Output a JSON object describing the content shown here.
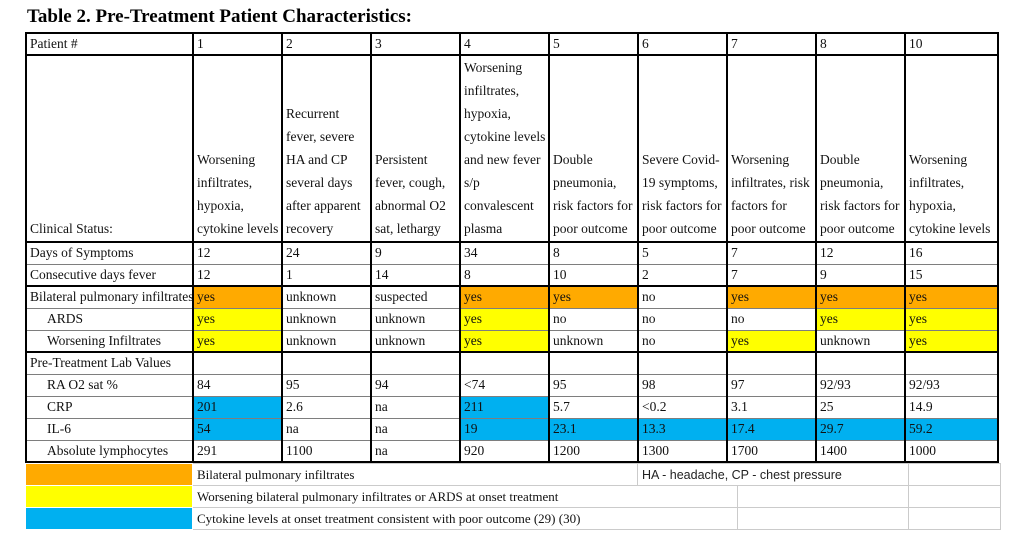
{
  "title": "Table 2. Pre-Treatment Patient Characteristics:",
  "colors": {
    "orange": "#FFAA00",
    "yellow": "#FFFF00",
    "blue": "#00B0F0"
  },
  "table": {
    "header_label": "Patient #",
    "patients": [
      "1",
      "2",
      "3",
      "4",
      "5",
      "6",
      "7",
      "8",
      "10"
    ],
    "clinical_status_label": "Clinical Status:",
    "clinical_status": [
      "Worsening infiltrates, hypoxia, cytokine levels",
      "Recurrent fever, severe HA and CP several days after apparent recovery",
      "Persistent fever, cough, abnormal O2 sat,  lethargy",
      "Worsening infiltrates, hypoxia, cytokine levels and new fever s/p convalescent plasma",
      "Double pneumonia, risk factors for poor outcome",
      "Severe Covid-19 symptoms, risk factors for poor outcome",
      "Worsening infiltrates, risk factors for poor outcome",
      "Double pneumonia, risk factors for poor outcome",
      "Worsening infiltrates, hypoxia, cytokine levels"
    ],
    "rows": [
      {
        "label": "Days of Symptoms",
        "indent": false,
        "cells": [
          {
            "t": "12"
          },
          {
            "t": "24"
          },
          {
            "t": "9"
          },
          {
            "t": "34"
          },
          {
            "t": "8"
          },
          {
            "t": "5"
          },
          {
            "t": "7"
          },
          {
            "t": "12"
          },
          {
            "t": "16"
          }
        ]
      },
      {
        "label": "Consecutive days fever",
        "indent": false,
        "cells": [
          {
            "t": "12"
          },
          {
            "t": "1"
          },
          {
            "t": "14"
          },
          {
            "t": "8"
          },
          {
            "t": "10"
          },
          {
            "t": "2"
          },
          {
            "t": "7"
          },
          {
            "t": "9"
          },
          {
            "t": "15"
          }
        ]
      },
      {
        "label": "Bilateral pulmonary infiltrates",
        "indent": false,
        "cells": [
          {
            "t": "yes",
            "c": "orange"
          },
          {
            "t": "unknown"
          },
          {
            "t": "suspected"
          },
          {
            "t": "yes",
            "c": "orange"
          },
          {
            "t": "yes",
            "c": "orange"
          },
          {
            "t": "no"
          },
          {
            "t": "yes",
            "c": "orange"
          },
          {
            "t": "yes",
            "c": "orange"
          },
          {
            "t": "yes",
            "c": "orange"
          }
        ]
      },
      {
        "label": "ARDS",
        "indent": true,
        "cells": [
          {
            "t": "yes",
            "c": "yellow"
          },
          {
            "t": "unknown"
          },
          {
            "t": "unknown"
          },
          {
            "t": "yes",
            "c": "yellow"
          },
          {
            "t": "no"
          },
          {
            "t": "no"
          },
          {
            "t": "no"
          },
          {
            "t": "yes",
            "c": "yellow"
          },
          {
            "t": "yes",
            "c": "yellow"
          }
        ]
      },
      {
        "label": "Worsening Infiltrates",
        "indent": true,
        "cells": [
          {
            "t": "yes",
            "c": "yellow"
          },
          {
            "t": "unknown"
          },
          {
            "t": "unknown"
          },
          {
            "t": "yes",
            "c": "yellow"
          },
          {
            "t": "unknown"
          },
          {
            "t": "no"
          },
          {
            "t": "yes",
            "c": "yellow"
          },
          {
            "t": "unknown"
          },
          {
            "t": "yes",
            "c": "yellow"
          }
        ]
      },
      {
        "label": "Pre-Treatment Lab Values",
        "indent": false,
        "cells": [
          {
            "t": ""
          },
          {
            "t": ""
          },
          {
            "t": ""
          },
          {
            "t": ""
          },
          {
            "t": ""
          },
          {
            "t": ""
          },
          {
            "t": ""
          },
          {
            "t": ""
          },
          {
            "t": ""
          }
        ]
      },
      {
        "label": "RA O2 sat %",
        "indent": true,
        "cells": [
          {
            "t": "84"
          },
          {
            "t": "95"
          },
          {
            "t": "94"
          },
          {
            "t": "<74"
          },
          {
            "t": "95"
          },
          {
            "t": "98"
          },
          {
            "t": "97"
          },
          {
            "t": "92/93"
          },
          {
            "t": "92/93"
          }
        ]
      },
      {
        "label": "CRP",
        "indent": true,
        "cells": [
          {
            "t": "201",
            "c": "blue"
          },
          {
            "t": "2.6"
          },
          {
            "t": "na"
          },
          {
            "t": "211",
            "c": "blue"
          },
          {
            "t": "5.7"
          },
          {
            "t": "<0.2"
          },
          {
            "t": "3.1"
          },
          {
            "t": "25"
          },
          {
            "t": "14.9"
          }
        ]
      },
      {
        "label": "IL-6",
        "indent": true,
        "cells": [
          {
            "t": "54",
            "c": "blue"
          },
          {
            "t": "na"
          },
          {
            "t": "na"
          },
          {
            "t": "19",
            "c": "blue"
          },
          {
            "t": "23.1",
            "c": "blue"
          },
          {
            "t": "13.3",
            "c": "blue"
          },
          {
            "t": "17.4",
            "c": "blue"
          },
          {
            "t": "29.7",
            "c": "blue"
          },
          {
            "t": "59.2",
            "c": "blue"
          }
        ]
      },
      {
        "label": "Absolute lymphocytes",
        "indent": true,
        "cells": [
          {
            "t": "291"
          },
          {
            "t": "1100"
          },
          {
            "t": "na"
          },
          {
            "t": "920"
          },
          {
            "t": "1200"
          },
          {
            "t": "1300"
          },
          {
            "t": "1700"
          },
          {
            "t": "1400"
          },
          {
            "t": "1000"
          }
        ]
      }
    ]
  },
  "legend": {
    "items": [
      {
        "color": "orange",
        "label": "Bilateral pulmonary infiltrates"
      },
      {
        "color": "yellow",
        "label": "Worsening bilateral pulmonary infiltrates or ARDS at onset treatment"
      },
      {
        "color": "blue",
        "label": "Cytokine levels at onset treatment consistent with poor outcome (29) (30)"
      }
    ],
    "note": "HA - headache, CP - chest pressure"
  }
}
